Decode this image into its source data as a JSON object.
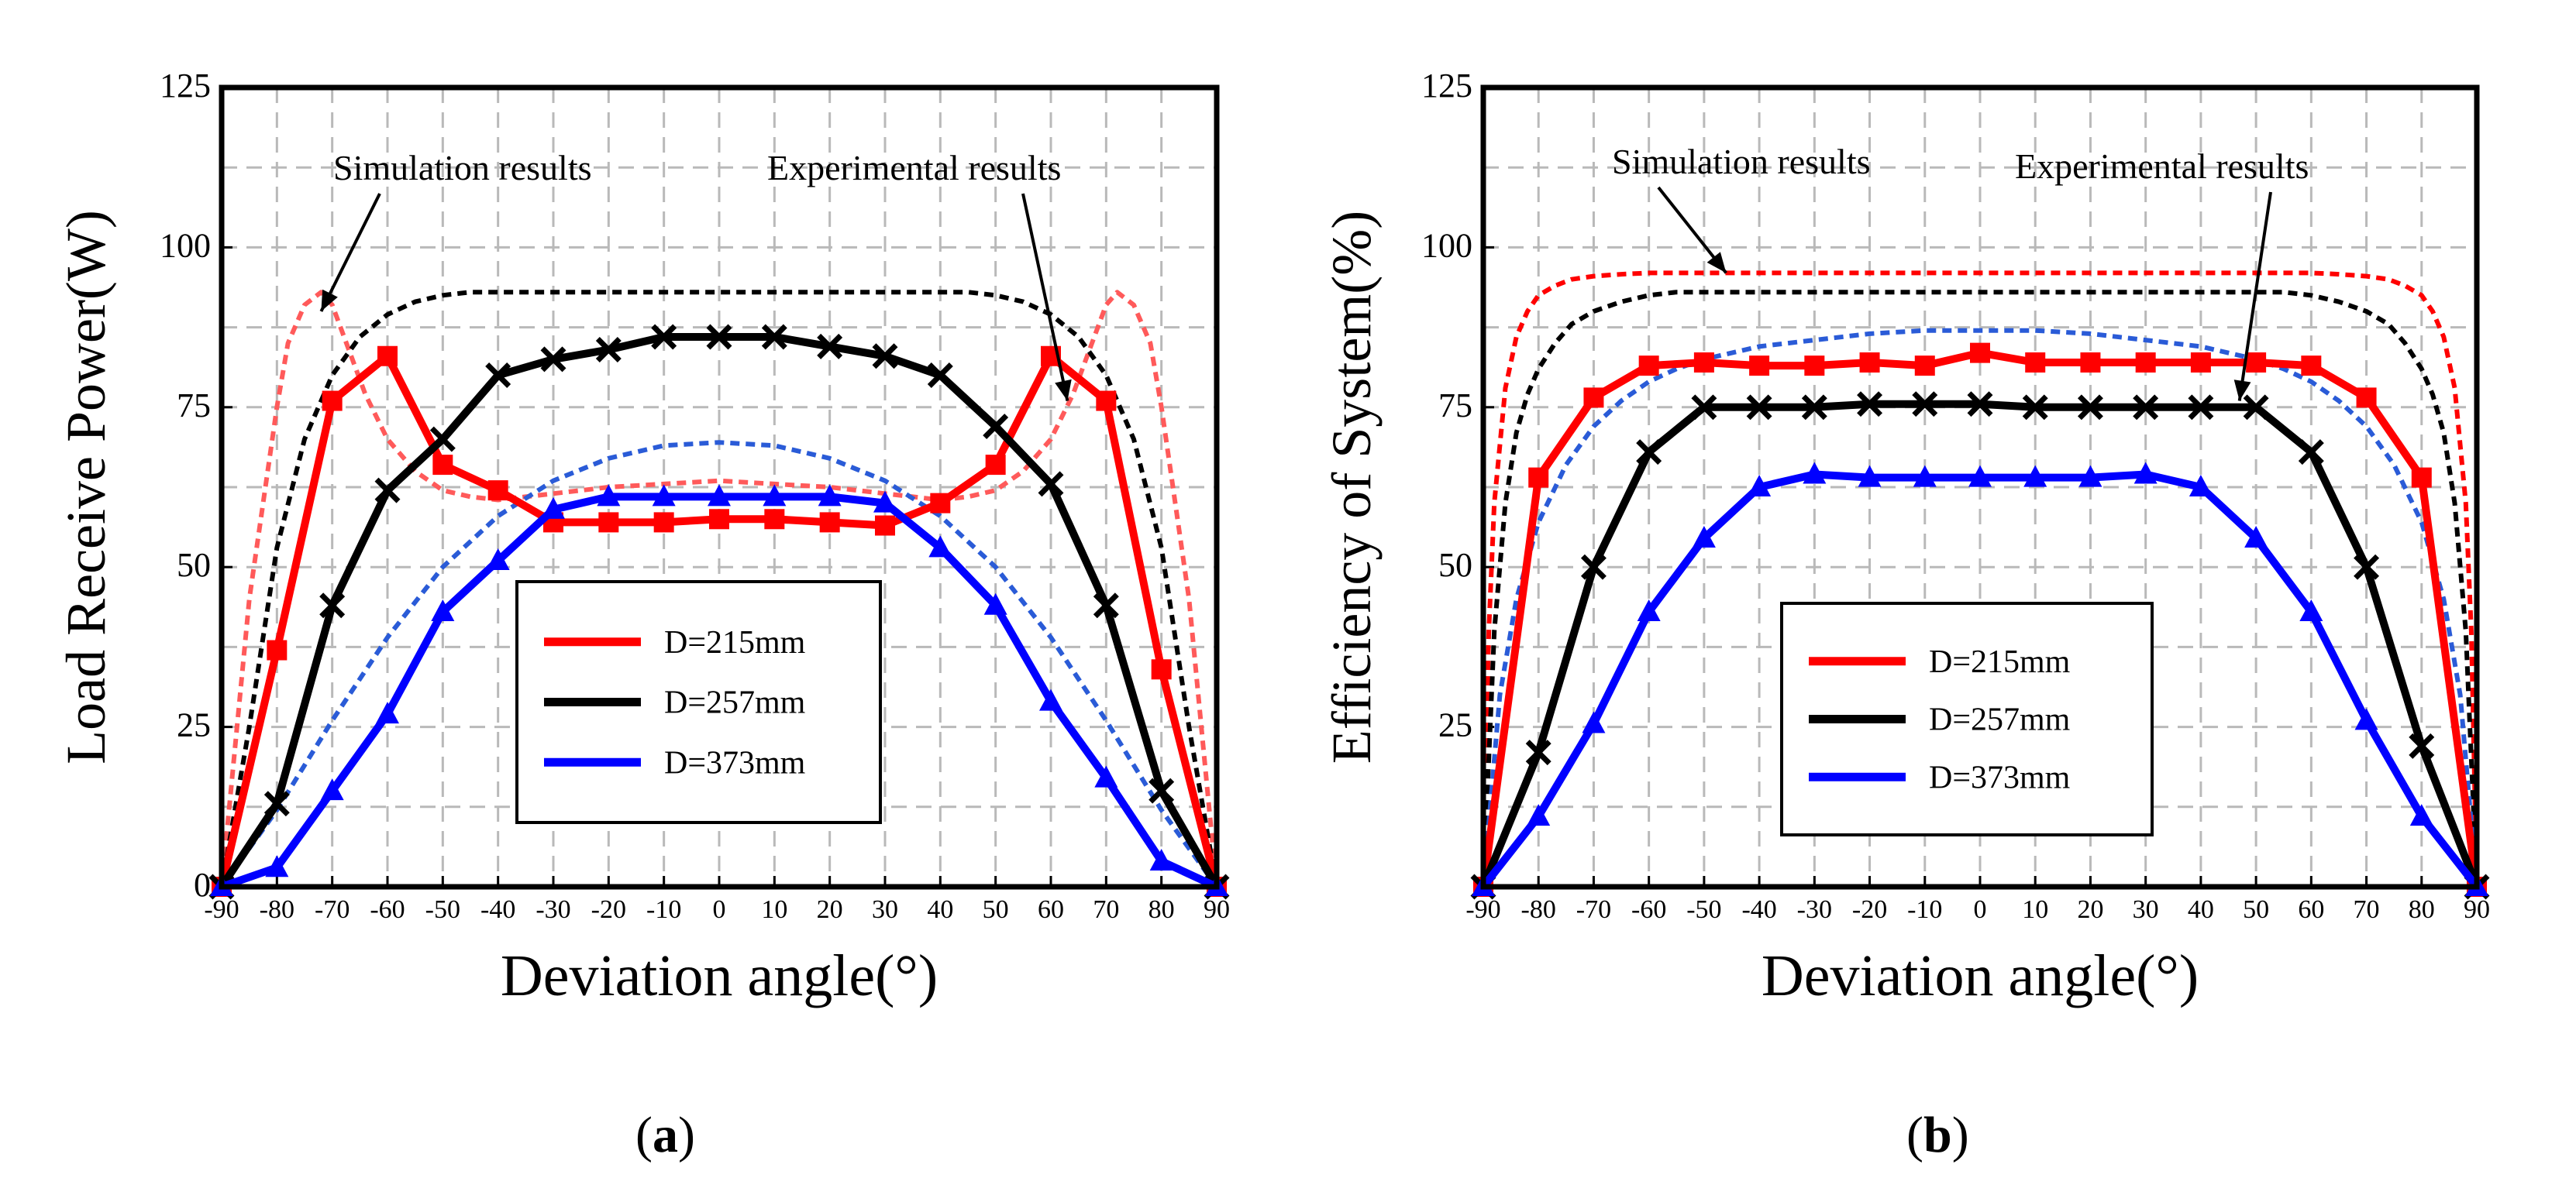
{
  "chart_data": [
    {
      "type": "line",
      "panel_label": "(a)",
      "panel_letter": "a",
      "xlabel": "Deviation angle(°)",
      "ylabel": "Load Receive Power(W)",
      "xlim": [
        -90,
        90
      ],
      "ylim": [
        0,
        125
      ],
      "x_ticks": [
        -90,
        -80,
        -70,
        -60,
        -50,
        -40,
        -30,
        -20,
        -10,
        0,
        10,
        20,
        30,
        40,
        50,
        60,
        70,
        80,
        90
      ],
      "y_ticks": [
        0,
        25,
        50,
        75,
        100,
        125
      ],
      "grid": true,
      "legend_position": "bottom-center",
      "annotations": [
        {
          "text": "Simulation results",
          "target_x": -72,
          "target_y": 90
        },
        {
          "text": "Experimental results",
          "target_x": 63,
          "target_y": 76
        }
      ],
      "series": [
        {
          "name": "D=215mm",
          "kind": "experimental",
          "color": "#ff0000",
          "marker": "square",
          "x": [
            -90,
            -80,
            -70,
            -60,
            -50,
            -40,
            -30,
            -20,
            -10,
            0,
            10,
            20,
            30,
            40,
            50,
            60,
            70,
            80,
            90
          ],
          "values": [
            0,
            37,
            76,
            83,
            66,
            62,
            57,
            57,
            57,
            57.5,
            57.5,
            57,
            56.5,
            60,
            66,
            83,
            76,
            34,
            0
          ]
        },
        {
          "name": "D=257mm",
          "kind": "experimental",
          "color": "#000000",
          "marker": "x",
          "x": [
            -90,
            -80,
            -70,
            -60,
            -50,
            -40,
            -30,
            -20,
            -10,
            0,
            10,
            20,
            30,
            40,
            50,
            60,
            70,
            80,
            90
          ],
          "values": [
            0,
            13,
            44,
            62,
            70,
            80,
            82.5,
            84,
            86,
            86,
            86,
            84.5,
            83,
            80,
            72,
            63,
            44,
            15,
            0
          ]
        },
        {
          "name": "D=373mm",
          "kind": "experimental",
          "color": "#0000ff",
          "marker": "triangle",
          "x": [
            -90,
            -80,
            -70,
            -60,
            -50,
            -40,
            -30,
            -20,
            -10,
            0,
            10,
            20,
            30,
            40,
            50,
            60,
            70,
            80,
            90
          ],
          "values": [
            0,
            3,
            15,
            27,
            43,
            51,
            59,
            61,
            61,
            61,
            61,
            61,
            60,
            53,
            44,
            29,
            17,
            4,
            0
          ]
        },
        {
          "name": "D=215mm simulation",
          "kind": "simulation",
          "color": "#ff5a5a",
          "x": [
            -90,
            -85,
            -80,
            -78,
            -75,
            -72,
            -70,
            -67,
            -64,
            -60,
            -55,
            -50,
            -45,
            -40,
            -35,
            -30,
            -20,
            -10,
            0,
            10,
            20,
            30,
            35,
            40,
            45,
            50,
            55,
            60,
            64,
            67,
            70,
            72,
            75,
            78,
            80,
            85,
            90
          ],
          "values": [
            0,
            45,
            75,
            85,
            91,
            93,
            91,
            84,
            77,
            70,
            65,
            62,
            61,
            60.5,
            61,
            61.5,
            62.5,
            63,
            63.5,
            63,
            62.5,
            61.5,
            61,
            60.5,
            61,
            62,
            65,
            70,
            77,
            84,
            91,
            93,
            91,
            85,
            75,
            45,
            0
          ]
        },
        {
          "name": "D=257mm simulation",
          "kind": "simulation",
          "color": "#000000",
          "x": [
            -90,
            -85,
            -80,
            -75,
            -70,
            -65,
            -60,
            -55,
            -50,
            -45,
            -40,
            -20,
            0,
            20,
            40,
            45,
            50,
            55,
            60,
            65,
            70,
            75,
            80,
            85,
            90
          ],
          "values": [
            0,
            25,
            53,
            70,
            80,
            86,
            89.5,
            91.5,
            92.5,
            93,
            93,
            93,
            93,
            93,
            93,
            93,
            92.5,
            91.5,
            89.5,
            86,
            80,
            70,
            53,
            25,
            0
          ]
        },
        {
          "name": "D=373mm simulation",
          "kind": "simulation",
          "color": "#2a5bd7",
          "x": [
            -90,
            -80,
            -70,
            -60,
            -50,
            -40,
            -30,
            -20,
            -10,
            0,
            10,
            20,
            30,
            40,
            50,
            60,
            70,
            80,
            90
          ],
          "values": [
            0,
            12,
            26,
            39,
            50,
            58,
            63.5,
            67,
            69,
            69.5,
            69,
            67,
            63.5,
            58,
            50,
            39,
            26,
            12,
            0
          ]
        }
      ]
    },
    {
      "type": "line",
      "panel_label": "(b)",
      "panel_letter": "b",
      "xlabel": "Deviation angle(°)",
      "ylabel": "Efficiency of System(%)",
      "xlim": [
        -90,
        90
      ],
      "ylim": [
        0,
        125
      ],
      "x_ticks": [
        -90,
        -80,
        -70,
        -60,
        -50,
        -40,
        -30,
        -20,
        -10,
        0,
        10,
        20,
        30,
        40,
        50,
        60,
        70,
        80,
        90
      ],
      "y_ticks": [
        25,
        50,
        75,
        100,
        125
      ],
      "grid": true,
      "legend_position": "bottom-center",
      "annotations": [
        {
          "text": "Simulation results",
          "target_x": -46,
          "target_y": 96
        },
        {
          "text": "Experimental results",
          "target_x": 47,
          "target_y": 76
        }
      ],
      "series": [
        {
          "name": "D=215mm",
          "kind": "experimental",
          "color": "#ff0000",
          "marker": "square",
          "x": [
            -90,
            -80,
            -70,
            -60,
            -50,
            -40,
            -30,
            -20,
            -10,
            0,
            10,
            20,
            30,
            40,
            50,
            60,
            70,
            80,
            90
          ],
          "values": [
            0,
            64,
            76.5,
            81.5,
            82,
            81.5,
            81.5,
            82,
            81.5,
            83.5,
            82,
            82,
            82,
            82,
            82,
            81.5,
            76.5,
            64,
            0
          ]
        },
        {
          "name": "D=257mm",
          "kind": "experimental",
          "color": "#000000",
          "marker": "x",
          "x": [
            -90,
            -80,
            -70,
            -60,
            -50,
            -40,
            -30,
            -20,
            -10,
            0,
            10,
            20,
            30,
            40,
            50,
            60,
            70,
            80,
            90
          ],
          "values": [
            0,
            21,
            50,
            68,
            75,
            75,
            75,
            75.5,
            75.5,
            75.5,
            75,
            75,
            75,
            75,
            75,
            68,
            50,
            22,
            0
          ]
        },
        {
          "name": "D=373mm",
          "kind": "experimental",
          "color": "#0000ff",
          "marker": "triangle",
          "x": [
            -90,
            -80,
            -70,
            -60,
            -50,
            -40,
            -30,
            -20,
            -10,
            0,
            10,
            20,
            30,
            40,
            50,
            60,
            70,
            80,
            90
          ],
          "values": [
            0,
            11,
            25.5,
            43,
            54.5,
            62.5,
            64.5,
            64,
            64,
            64,
            64,
            64,
            64.5,
            62.5,
            54.5,
            43,
            26,
            11,
            0
          ]
        },
        {
          "name": "D=215mm simulation",
          "kind": "simulation",
          "color": "#ff0000",
          "x": [
            -90,
            -89,
            -88,
            -86,
            -84,
            -82,
            -80,
            -77,
            -74,
            -70,
            -65,
            -60,
            -50,
            -40,
            0,
            40,
            50,
            60,
            65,
            70,
            74,
            77,
            80,
            82,
            84,
            86,
            88,
            89,
            90
          ],
          "values": [
            0,
            40,
            60,
            78,
            86,
            90,
            92.5,
            94,
            95,
            95.5,
            95.8,
            96,
            96,
            96,
            96,
            96,
            96,
            96,
            95.8,
            95.5,
            95,
            94,
            92.5,
            90,
            86,
            78,
            60,
            40,
            0
          ]
        },
        {
          "name": "D=257mm simulation",
          "kind": "simulation",
          "color": "#000000",
          "x": [
            -90,
            -88,
            -86,
            -84,
            -82,
            -80,
            -77,
            -74,
            -70,
            -65,
            -60,
            -55,
            -50,
            0,
            50,
            55,
            60,
            65,
            70,
            74,
            77,
            80,
            82,
            84,
            86,
            88,
            90
          ],
          "values": [
            0,
            40,
            60,
            71,
            77,
            81,
            85,
            88,
            90,
            91.5,
            92.5,
            93,
            93,
            93,
            93,
            93,
            92.5,
            91.5,
            90,
            88,
            85,
            81,
            77,
            71,
            60,
            40,
            0
          ]
        },
        {
          "name": "D=373mm simulation",
          "kind": "simulation",
          "color": "#2a5bd7",
          "x": [
            -90,
            -87,
            -84,
            -80,
            -75,
            -70,
            -65,
            -60,
            -55,
            -50,
            -40,
            -30,
            -20,
            -10,
            0,
            10,
            20,
            30,
            40,
            50,
            55,
            60,
            65,
            70,
            75,
            80,
            84,
            87,
            90
          ],
          "values": [
            0,
            30,
            45,
            57,
            66,
            72,
            76,
            79,
            81,
            82.5,
            84.5,
            85.5,
            86.5,
            87,
            87,
            87,
            86.5,
            85.5,
            84.5,
            82.5,
            81,
            79,
            76,
            72,
            66,
            57,
            45,
            30,
            0
          ]
        }
      ]
    }
  ]
}
